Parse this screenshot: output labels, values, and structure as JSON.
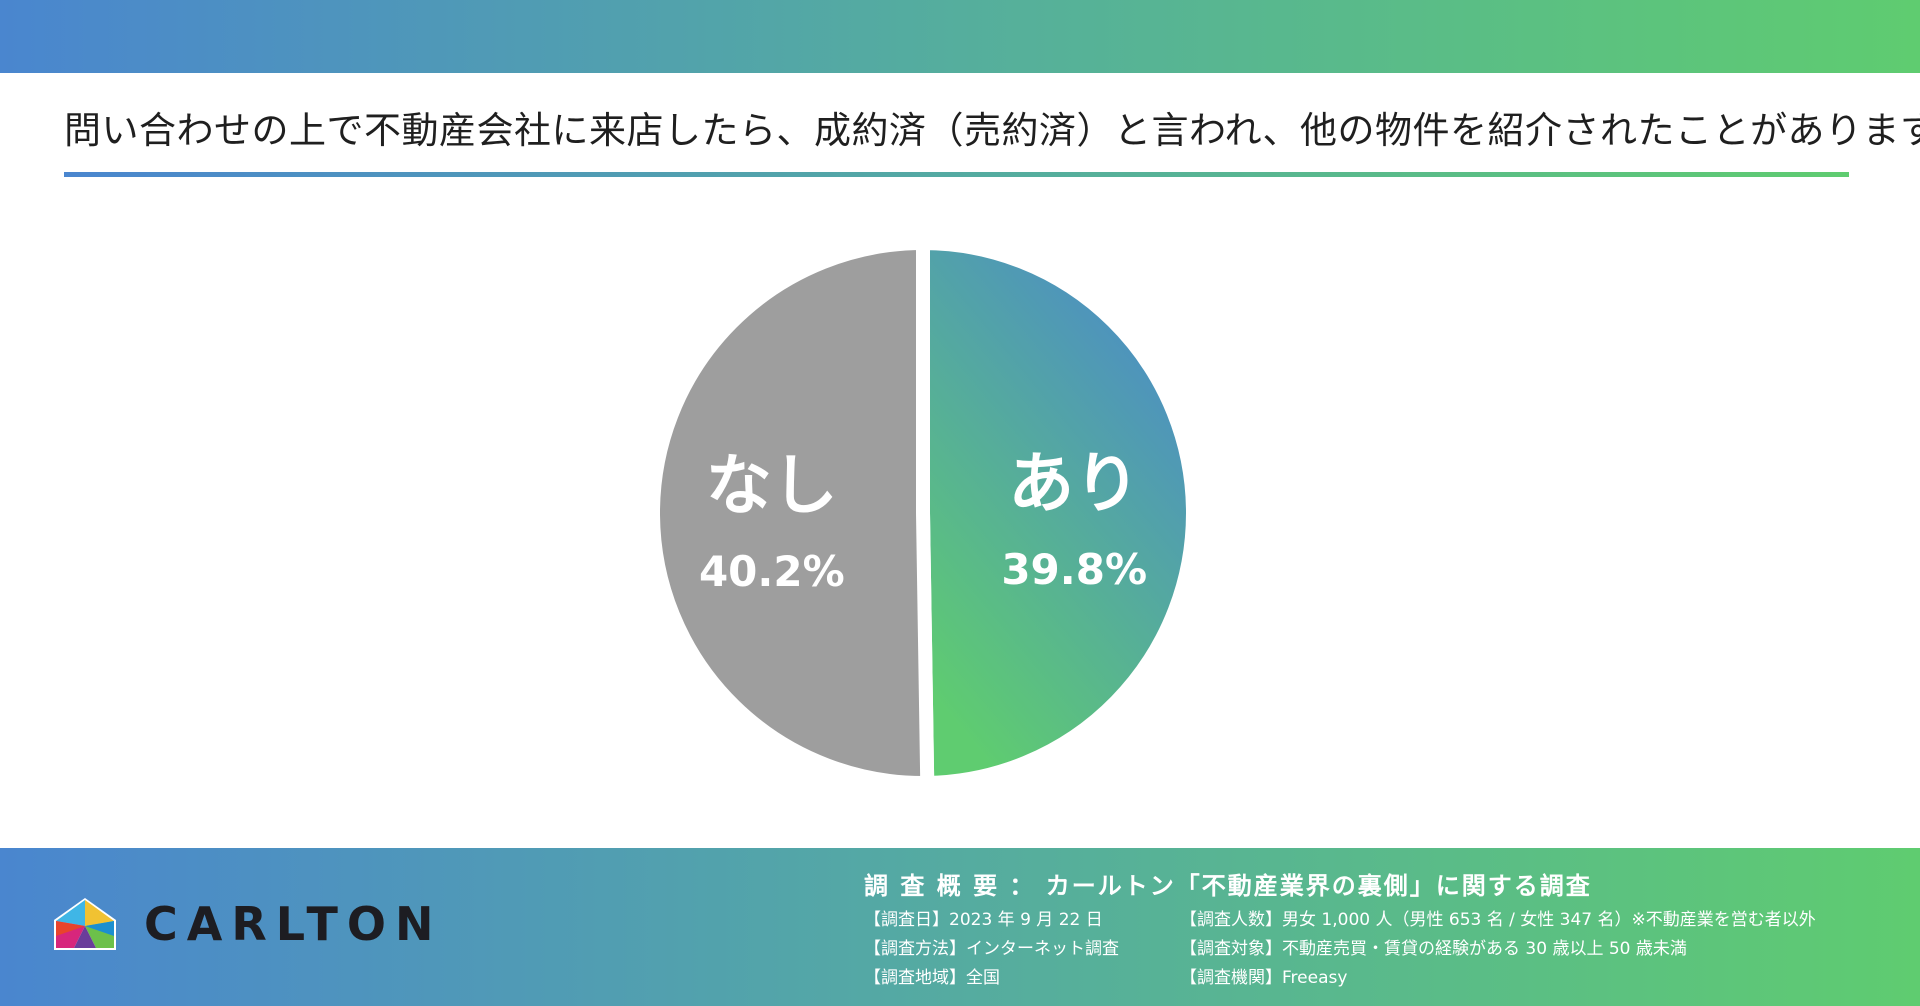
{
  "title": "問い合わせの上で不動産会社に来店したら、成約済（売約済）と言われ、他の物件を紹介されたことがありますか？",
  "colors": {
    "gradient_start": "#4a86cf",
    "gradient_end": "#5fcc70",
    "slice_none": "#9e9e9e"
  },
  "chart_data": {
    "type": "pie",
    "title": "",
    "slices": [
      {
        "label": "あり",
        "value": 39.8,
        "value_label": "39.8%"
      },
      {
        "label": "なし",
        "value": 40.2,
        "value_label": "40.2%"
      }
    ]
  },
  "footer": {
    "logo_text": "CARLTON",
    "survey_heading": "調 査 概 要 ： カールトン「不動産業界の裏側」に関する調査",
    "items": [
      "【調査日】2023 年 9 月 22 日",
      "【調査人数】男女 1,000 人（男性 653 名 / 女性  347 名）※不動産業を営む者以外",
      "【調査方法】インターネット調査",
      "【調査対象】不動産売買・賃貸の経験がある 30 歳以上 50 歳未満",
      "【調査地域】全国",
      "【調査機関】Freeasy"
    ]
  }
}
